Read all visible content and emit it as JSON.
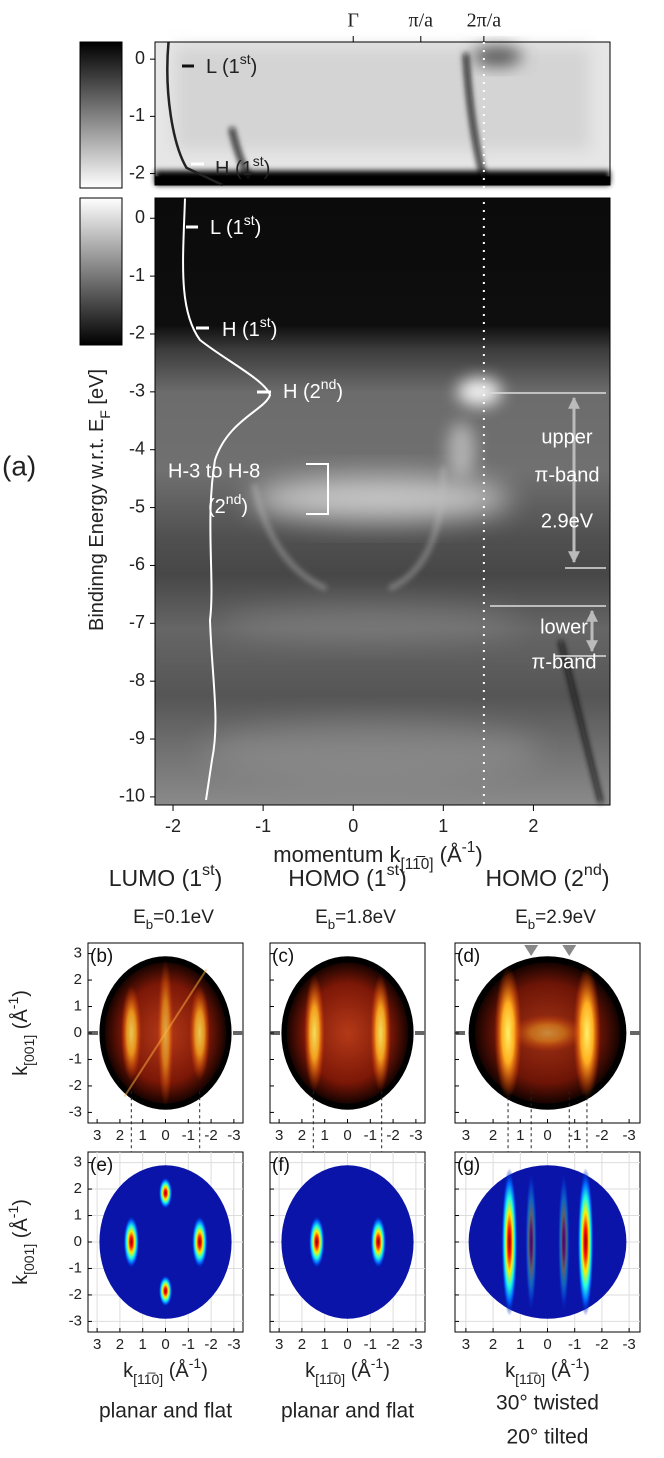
{
  "panel_a": {
    "label": "(a)",
    "ylabel": [
      "Bindinng Energy w.r.t. E",
      "F",
      " [eV]"
    ],
    "xlabel": [
      "momentum k",
      "[11̅0]",
      " (Å",
      "-1",
      ")"
    ],
    "xlim": [
      -2.2,
      2.85
    ],
    "xticks": [
      -2,
      -1,
      0,
      1,
      2
    ],
    "ylim": [
      -10.14,
      0.35
    ],
    "yticks": [
      0,
      -1,
      -2,
      -3,
      -4,
      -5,
      -6,
      -7,
      -8,
      -9,
      -10
    ],
    "inset_ylim": [
      -2.2,
      0.3
    ],
    "inset_yticks": [
      0,
      -1,
      -2
    ],
    "top_ticks": [
      {
        "value": 0,
        "label": "Γ"
      },
      {
        "value": 0.75,
        "label": "π/a"
      },
      {
        "value": 1.45,
        "label": "2π/a"
      }
    ],
    "inset_annotations": [
      [
        "L (1",
        "st",
        ")"
      ],
      [
        "H (1",
        "st",
        ")"
      ]
    ],
    "annotations": [
      [
        "L (1",
        "st",
        ")"
      ],
      [
        "H (1",
        "st",
        ")"
      ],
      [
        "H (2",
        "nd",
        ")"
      ]
    ],
    "group_label": "H-3 to H-8",
    "group_sub": [
      "(2",
      "nd",
      ")"
    ],
    "upper_band": [
      "upper",
      "π-band",
      "2.9eV"
    ],
    "lower_band": [
      "lower",
      "π-band"
    ]
  },
  "maps": {
    "titles": [
      [
        "LUMO (1",
        "st",
        ")"
      ],
      [
        "HOMO (1",
        "st",
        ")"
      ],
      [
        "HOMO (2",
        "nd",
        ")"
      ]
    ],
    "energies": [
      [
        "E",
        "b",
        "=0.1eV"
      ],
      [
        "E",
        "b",
        "=1.8eV"
      ],
      [
        "E",
        "b",
        "=2.9eV"
      ]
    ],
    "labels": [
      "(b)",
      "(c)",
      "(d)",
      "(e)",
      "(f)",
      "(g)"
    ],
    "xlim": [
      3.4,
      -3.4
    ],
    "ylim": [
      -3.4,
      3.4
    ],
    "xticks": [
      3,
      2,
      1,
      0,
      -1,
      -2,
      -3
    ],
    "yticks": [
      3,
      2,
      1,
      0,
      -1,
      -2,
      -3
    ],
    "ylabel": [
      "k",
      "[001]",
      " (Å",
      "-1",
      ")"
    ],
    "xlabel": [
      "k",
      "[11̅0]",
      " (Å",
      "-1",
      ")"
    ],
    "captions": [
      [
        "planar and flat"
      ],
      [
        "planar and flat"
      ],
      [
        "30° twisted",
        "20° tilted"
      ]
    ]
  }
}
